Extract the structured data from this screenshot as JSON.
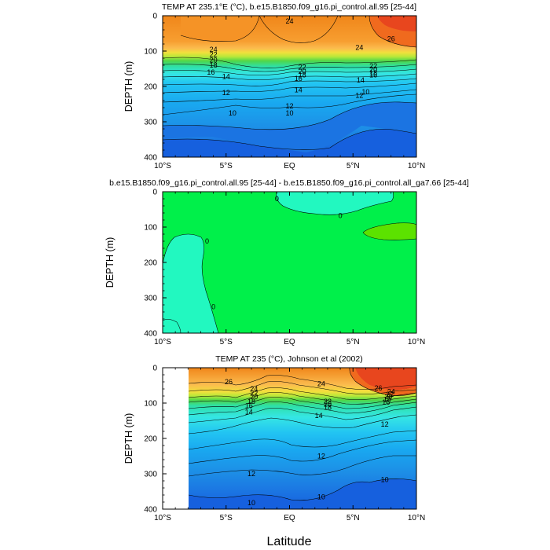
{
  "figure": {
    "xlabel": "Latitude"
  },
  "chart_data": [
    {
      "type": "heatmap",
      "title": "TEMP AT 235.1°E (°C), b.e15.B1850.f09_g16.pi_control.all.95 [25-44]",
      "xlabel": "",
      "ylabel": "DEPTH (m)",
      "x_ticks": [
        "10°S",
        "5°S",
        "EQ",
        "5°N",
        "10°N"
      ],
      "x_values": [
        -10,
        -5,
        0,
        5,
        10
      ],
      "y_ticks": [
        "0",
        "100",
        "200",
        "300",
        "400"
      ],
      "y_values": [
        0,
        100,
        200,
        300,
        400
      ],
      "xlim": [
        -10,
        10
      ],
      "ylim": [
        400,
        0
      ],
      "contour_labels": [
        {
          "text": "24",
          "x": 0.0,
          "y": 15
        },
        {
          "text": "26",
          "x": 8.0,
          "y": 65
        },
        {
          "text": "24",
          "x": -6.0,
          "y": 95
        },
        {
          "text": "24",
          "x": 5.5,
          "y": 90
        },
        {
          "text": "22",
          "x": -6.0,
          "y": 110
        },
        {
          "text": "20",
          "x": -6.0,
          "y": 125
        },
        {
          "text": "18",
          "x": -6.0,
          "y": 140
        },
        {
          "text": "16",
          "x": -6.2,
          "y": 160
        },
        {
          "text": "14",
          "x": -5.0,
          "y": 172
        },
        {
          "text": "22",
          "x": 1.0,
          "y": 145
        },
        {
          "text": "20",
          "x": 1.0,
          "y": 158
        },
        {
          "text": "18",
          "x": 1.0,
          "y": 168
        },
        {
          "text": "16",
          "x": 0.7,
          "y": 178
        },
        {
          "text": "14",
          "x": 0.7,
          "y": 210
        },
        {
          "text": "22",
          "x": 6.6,
          "y": 142
        },
        {
          "text": "20",
          "x": 6.6,
          "y": 152
        },
        {
          "text": "18",
          "x": 6.6,
          "y": 162
        },
        {
          "text": "16",
          "x": 6.6,
          "y": 168
        },
        {
          "text": "14",
          "x": 5.6,
          "y": 182
        },
        {
          "text": "12",
          "x": 5.5,
          "y": 225
        },
        {
          "text": "12",
          "x": -5.0,
          "y": 218
        },
        {
          "text": "12",
          "x": 0.0,
          "y": 255
        },
        {
          "text": "10",
          "x": -4.5,
          "y": 275
        },
        {
          "text": "10",
          "x": 0.0,
          "y": 275
        },
        {
          "text": "10",
          "x": 6.0,
          "y": 215
        }
      ]
    },
    {
      "type": "heatmap",
      "title": "b.e15.B1850.f09_g16.pi_control.all.95 [25-44] - b.e15.B1850.f09_g16.pi_control.all_ga7.66 [25-44]",
      "xlabel": "",
      "ylabel": "DEPTH (m)",
      "x_ticks": [
        "10°S",
        "5°S",
        "EQ",
        "5°N",
        "10°N"
      ],
      "x_values": [
        -10,
        -5,
        0,
        5,
        10
      ],
      "y_ticks": [
        "0",
        "100",
        "200",
        "300",
        "400"
      ],
      "y_values": [
        0,
        100,
        200,
        300,
        400
      ],
      "xlim": [
        -10,
        10
      ],
      "ylim": [
        400,
        0
      ],
      "contour_labels": [
        {
          "text": "0",
          "x": -1.0,
          "y": 20
        },
        {
          "text": "0",
          "x": 4.0,
          "y": 68
        },
        {
          "text": "0",
          "x": -6.5,
          "y": 140
        },
        {
          "text": "0",
          "x": -6.0,
          "y": 325
        }
      ]
    },
    {
      "type": "heatmap",
      "title": "TEMP AT 235 (°C), Johnson et al (2002)",
      "xlabel": "",
      "ylabel": "DEPTH (m)",
      "x_ticks": [
        "10°S",
        "5°S",
        "EQ",
        "5°N",
        "10°N"
      ],
      "x_values": [
        -10,
        -5,
        0,
        5,
        10
      ],
      "y_ticks": [
        "0",
        "100",
        "200",
        "300",
        "400"
      ],
      "y_values": [
        0,
        100,
        200,
        300,
        400
      ],
      "xlim": [
        -10,
        10
      ],
      "ylim": [
        400,
        0
      ],
      "data_xlim": [
        -8,
        10
      ],
      "contour_labels": [
        {
          "text": "26",
          "x": -4.8,
          "y": 40
        },
        {
          "text": "24",
          "x": -2.8,
          "y": 60
        },
        {
          "text": "22",
          "x": -2.8,
          "y": 72
        },
        {
          "text": "20",
          "x": -2.8,
          "y": 82
        },
        {
          "text": "18",
          "x": -3.0,
          "y": 95
        },
        {
          "text": "16",
          "x": -3.2,
          "y": 108
        },
        {
          "text": "14",
          "x": -3.2,
          "y": 125
        },
        {
          "text": "24",
          "x": 2.5,
          "y": 45
        },
        {
          "text": "22",
          "x": 3.0,
          "y": 95
        },
        {
          "text": "20",
          "x": 3.0,
          "y": 103
        },
        {
          "text": "18",
          "x": 3.0,
          "y": 112
        },
        {
          "text": "14",
          "x": 2.3,
          "y": 135
        },
        {
          "text": "26",
          "x": 7.0,
          "y": 58
        },
        {
          "text": "24",
          "x": 8.0,
          "y": 68
        },
        {
          "text": "22",
          "x": 7.9,
          "y": 75
        },
        {
          "text": "20",
          "x": 7.8,
          "y": 82
        },
        {
          "text": "18",
          "x": 7.7,
          "y": 90
        },
        {
          "text": "16",
          "x": 7.6,
          "y": 98
        },
        {
          "text": "12",
          "x": 7.5,
          "y": 160
        },
        {
          "text": "12",
          "x": 2.5,
          "y": 250
        },
        {
          "text": "12",
          "x": -3.0,
          "y": 300
        },
        {
          "text": "10",
          "x": 2.5,
          "y": 365
        },
        {
          "text": "10",
          "x": -3.0,
          "y": 382
        },
        {
          "text": "10",
          "x": 7.5,
          "y": 317
        }
      ]
    }
  ]
}
